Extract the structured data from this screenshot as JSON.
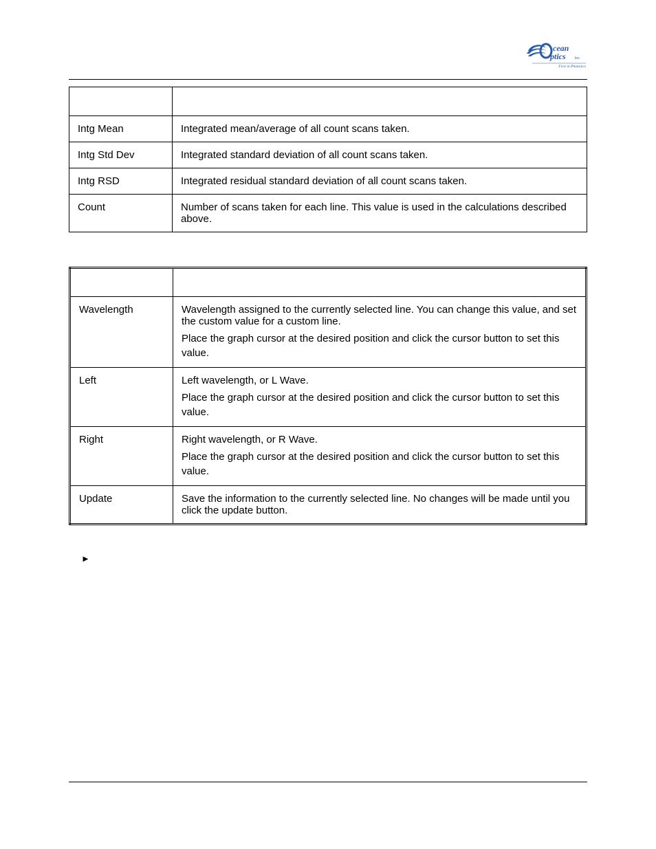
{
  "logo": {
    "top_text": "cean",
    "bottom_text": "ptics",
    "sub_text": "Inc.",
    "tagline": "First in Photonics",
    "primary_color": "#2a5aa7",
    "accent_color": "#3b6fb5"
  },
  "table1": {
    "columns": [
      "",
      ""
    ],
    "rows": [
      {
        "label": "Intg Mean",
        "desc": [
          "Integrated mean/average of all count scans taken."
        ]
      },
      {
        "label": "Intg Std Dev",
        "desc": [
          "Integrated standard deviation of all count scans taken."
        ]
      },
      {
        "label": "Intg RSD",
        "desc": [
          "Integrated residual standard deviation of all count scans taken."
        ]
      },
      {
        "label": "Count",
        "desc": [
          "Number of scans taken for each line. This value is used in the calculations described above."
        ]
      }
    ]
  },
  "table2": {
    "columns": [
      "",
      ""
    ],
    "rows": [
      {
        "label": "Wavelength",
        "desc": [
          "Wavelength assigned to the currently selected line. You can change this value, and set the custom value for a custom line.",
          "Place the graph cursor at the desired position and click the cursor button to set this value."
        ]
      },
      {
        "label": "Left",
        "desc": [
          "Left wavelength, or L Wave.",
          "Place the graph cursor at the desired position and click the cursor button to set this value."
        ]
      },
      {
        "label": "Right",
        "desc": [
          "Right wavelength, or R Wave.",
          "Place the graph cursor at the desired position and click the cursor button to set this value."
        ]
      },
      {
        "label": "Update",
        "desc": [
          "Save the information to the currently selected line. No changes will be made until you click the update button."
        ]
      }
    ]
  },
  "procedure_marker": "►"
}
